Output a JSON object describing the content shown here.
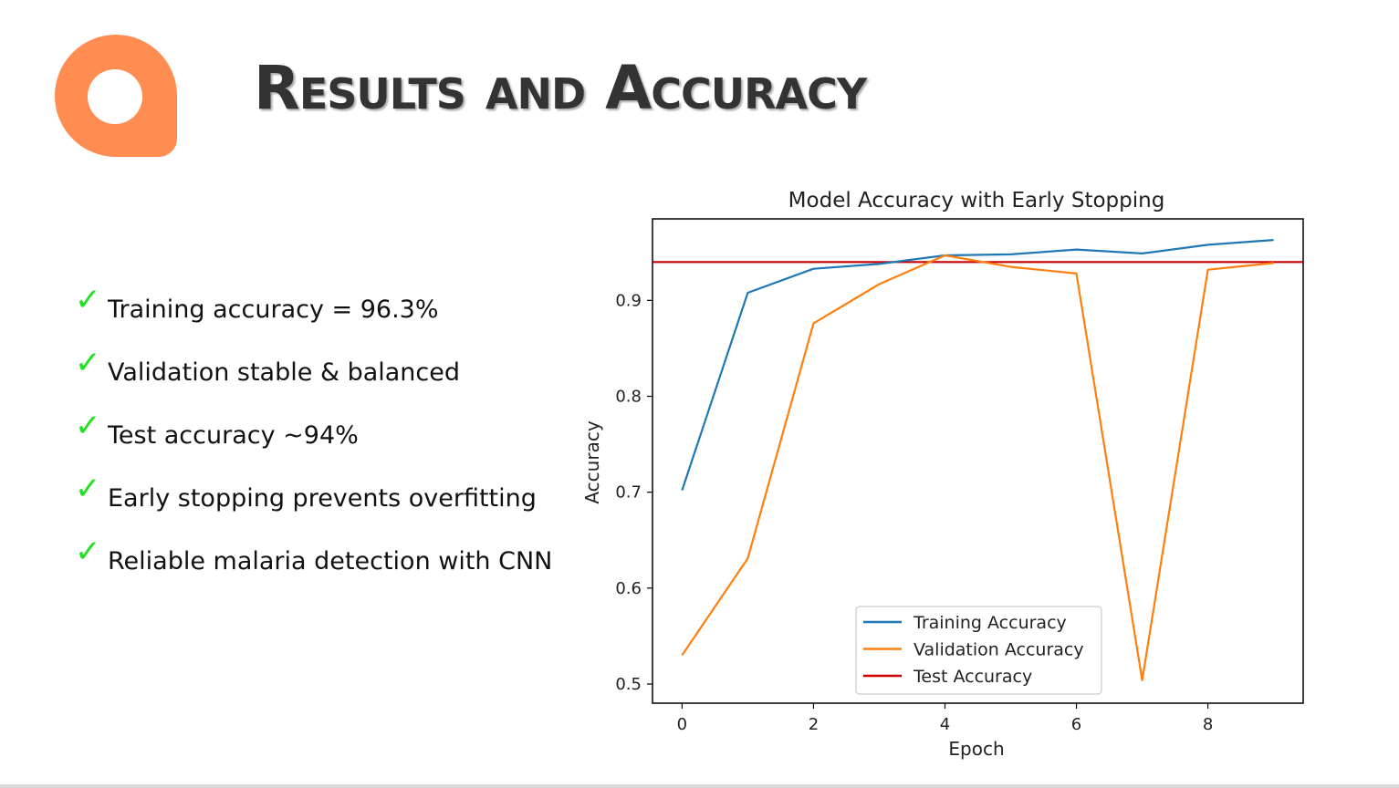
{
  "slide": {
    "title": "Results and Accuracy",
    "logo": {
      "icon": "letter-a-logo-icon",
      "color": "#FF8C50"
    },
    "check_color": "#22E022",
    "bullets": [
      "Training accuracy = 96.3%",
      "Validation stable & balanced",
      "Test accuracy ~94%",
      "Early stopping prevents overfitting",
      "Reliable malaria detection with CNN"
    ]
  },
  "chart_data": {
    "type": "line",
    "title": "Model Accuracy with Early Stopping",
    "xlabel": "Epoch",
    "ylabel": "Accuracy",
    "xlim": [
      -0.45,
      9.45
    ],
    "ylim": [
      0.48,
      0.985
    ],
    "xticks": [
      0,
      2,
      4,
      6,
      8
    ],
    "yticks": [
      0.5,
      0.6,
      0.7,
      0.8,
      0.9
    ],
    "x": [
      0,
      1,
      2,
      3,
      4,
      5,
      6,
      7,
      8,
      9
    ],
    "series": [
      {
        "name": "Training Accuracy",
        "color": "#1F77B4",
        "values": [
          0.702,
          0.908,
          0.933,
          0.938,
          0.947,
          0.948,
          0.953,
          0.949,
          0.958,
          0.963
        ]
      },
      {
        "name": "Validation Accuracy",
        "color": "#FF7F0E",
        "values": [
          0.53,
          0.631,
          0.876,
          0.917,
          0.947,
          0.935,
          0.928,
          0.504,
          0.932,
          0.939
        ]
      }
    ],
    "hlines": [
      {
        "name": "Test Accuracy",
        "color": "#CC0000",
        "value": 0.94
      }
    ],
    "grid": false,
    "legend_position": "lower-center"
  }
}
